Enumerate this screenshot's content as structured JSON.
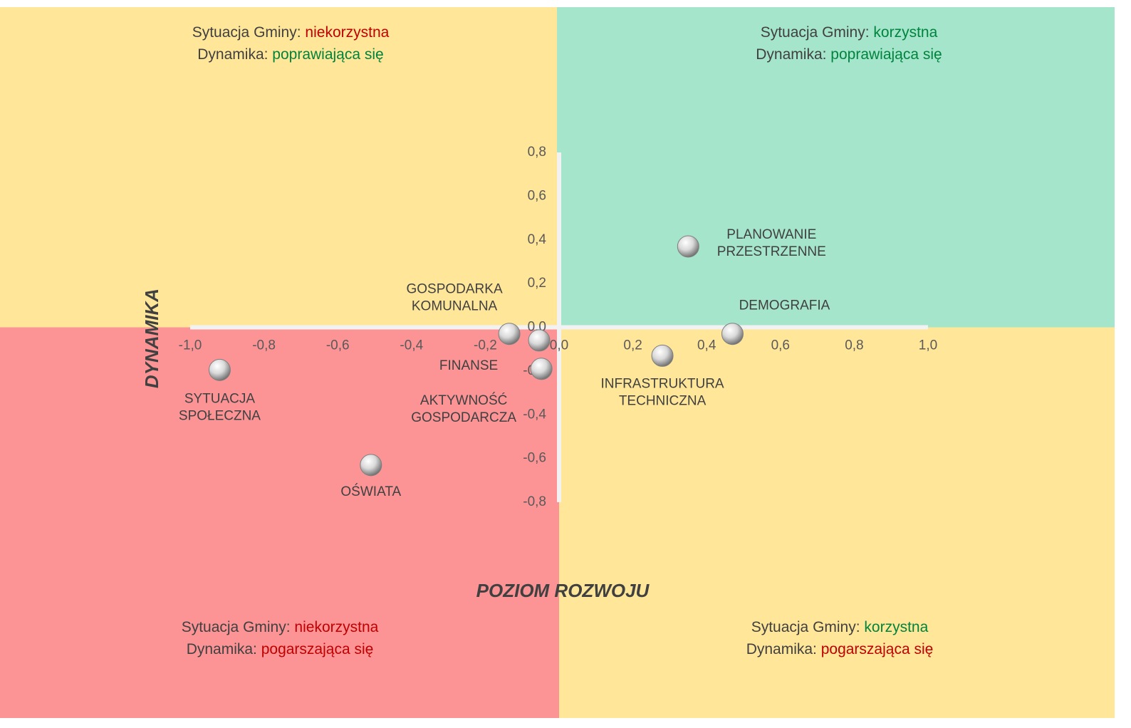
{
  "chart_data": {
    "type": "scatter",
    "x_label": "POZIOM ROZWOJU",
    "y_label": "DYNAMIKA",
    "xlim": [
      -1.0,
      1.0
    ],
    "ylim": [
      -0.8,
      0.8
    ],
    "xticks": [
      {
        "value": -1.0,
        "label": "-1,0"
      },
      {
        "value": -0.8,
        "label": "-0,8"
      },
      {
        "value": -0.6,
        "label": "-0,6"
      },
      {
        "value": -0.4,
        "label": "-0,4"
      },
      {
        "value": -0.2,
        "label": "-0,2"
      },
      {
        "value": 0,
        "label": "0,0"
      },
      {
        "value": 0.2,
        "label": "0,2"
      },
      {
        "value": 0.4,
        "label": "0,4"
      },
      {
        "value": 0.6,
        "label": "0,6"
      },
      {
        "value": 0.8,
        "label": "0,8"
      },
      {
        "value": 1.0,
        "label": "1,0"
      }
    ],
    "yticks": [
      {
        "value": 0.8,
        "label": "0,8"
      },
      {
        "value": 0.6,
        "label": "0,6"
      },
      {
        "value": 0.4,
        "label": "0,4"
      },
      {
        "value": 0.2,
        "label": "0,2"
      },
      {
        "value": 0,
        "label": "0,0"
      },
      {
        "value": -0.2,
        "label": "-0,2"
      },
      {
        "value": -0.4,
        "label": "-0,4"
      },
      {
        "value": -0.6,
        "label": "-0,6"
      },
      {
        "value": -0.8,
        "label": "-0,8"
      }
    ],
    "labels": [
      [
        "PLANOWANIE",
        "PRZESTRZENNE"
      ],
      [
        "DEMOGRAFIA"
      ],
      [
        "INFRASTRUKTURA",
        "TECHNICZNA"
      ],
      [
        "GOSPODARKA",
        "KOMUNALNA"
      ],
      [
        "FINANSE"
      ],
      [
        "AKTYWNOŚĆ",
        "GOSPODARCZA"
      ],
      [
        "SYTUACJA",
        "SPOŁECZNA"
      ],
      [
        "OŚWIATA"
      ]
    ],
    "x": [
      0.35,
      0.47,
      0.28,
      -0.135,
      -0.054,
      -0.048,
      -0.92,
      -0.51
    ],
    "y": [
      0.37,
      -0.03,
      -0.13,
      -0.03,
      -0.06,
      -0.19,
      -0.195,
      -0.63
    ],
    "quadrants": [
      {
        "color": "#ffe699",
        "lines": [
          {
            "text": "Sytuacja Gminy:",
            "value": "niekorzystna",
            "value_color": "#c00000"
          },
          {
            "text": "Dynamika:",
            "value": "poprawiająca się",
            "value_color": "#00843d"
          }
        ]
      },
      {
        "color": "#a5e5cb",
        "lines": [
          {
            "text": "Sytuacja Gminy:",
            "value": "korzystna",
            "value_color": "#00843d"
          },
          {
            "text": "Dynamika:",
            "value": "poprawiająca się",
            "value_color": "#00843d"
          }
        ]
      },
      {
        "color": "#fc9496",
        "lines": [
          {
            "text": "Sytuacja Gminy:",
            "value": "niekorzystna",
            "value_color": "#c00000"
          },
          {
            "text": "Dynamika:",
            "value": "pogarszająca się",
            "value_color": "#c00000"
          }
        ]
      },
      {
        "color": "#ffe699",
        "lines": [
          {
            "text": "Sytuacja Gminy:",
            "value": "korzystna",
            "value_color": "#00843d"
          },
          {
            "text": "Dynamika:",
            "value": "pogarszająca się",
            "value_color": "#c00000"
          }
        ]
      }
    ]
  }
}
